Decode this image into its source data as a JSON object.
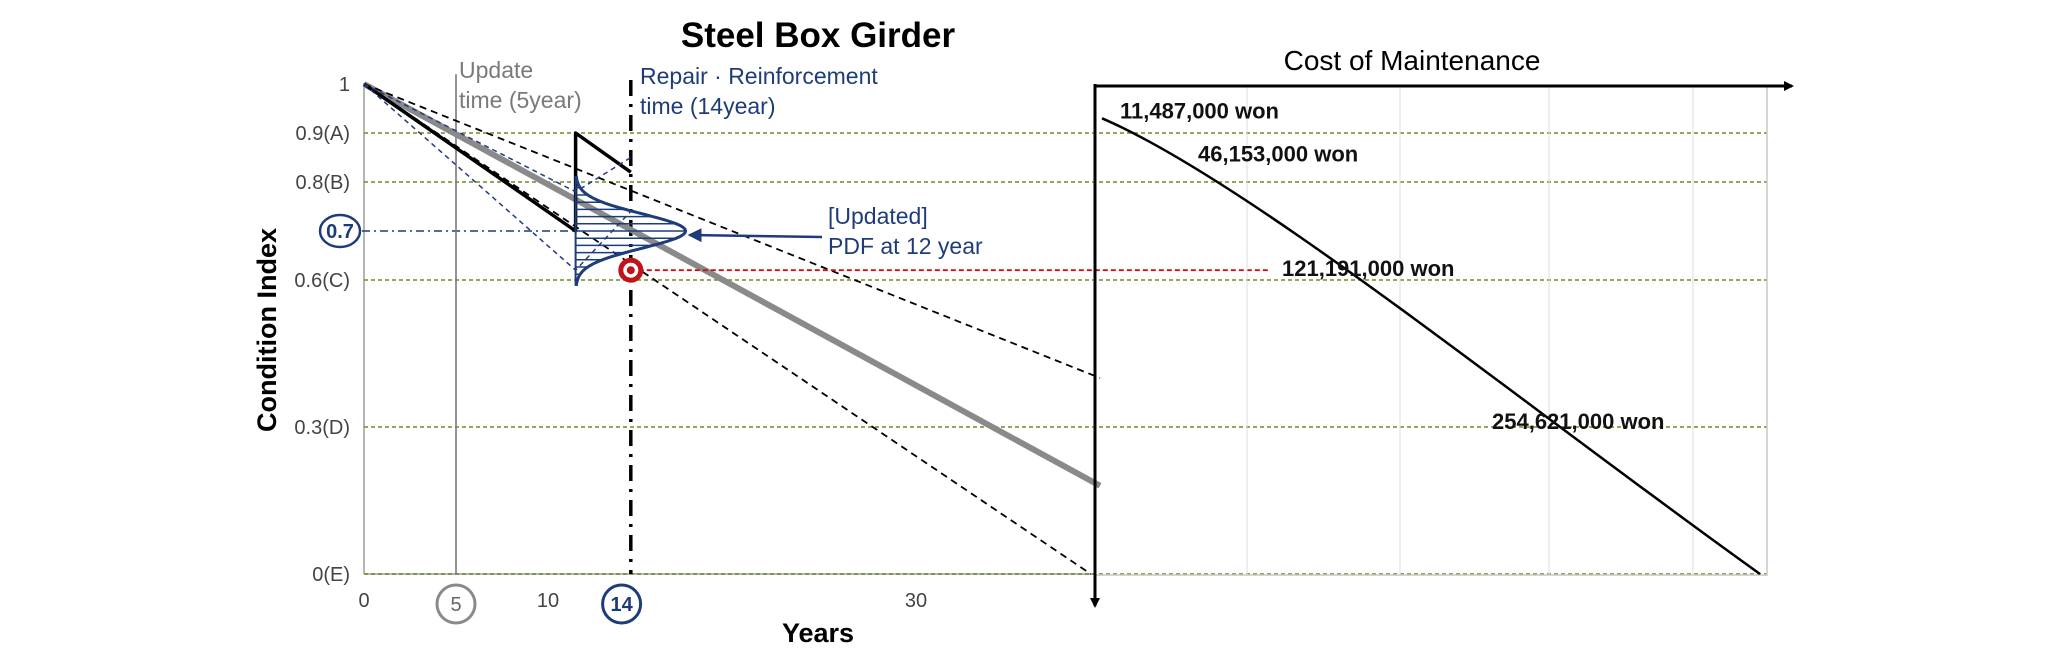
{
  "chart_data": [
    {
      "type": "line",
      "title": "Steel Box Girder",
      "xlabel": "Years",
      "ylabel": "Condition Index",
      "xlim": [
        0,
        40
      ],
      "ylim": [
        0,
        1
      ],
      "x_ticks": [
        "0",
        "5",
        "10",
        "14",
        "30"
      ],
      "x_ticks_circled": [
        "5",
        "14"
      ],
      "y_ticks": [
        {
          "value": 1,
          "label": "1"
        },
        {
          "value": 0.9,
          "label": "0.9(A)"
        },
        {
          "value": 0.8,
          "label": "0.8(B)"
        },
        {
          "value": 0.7,
          "label": "0.7"
        },
        {
          "value": 0.6,
          "label": "0.6(C)"
        },
        {
          "value": 0.3,
          "label": "0.3(D)"
        },
        {
          "value": 0,
          "label": "0(E)"
        }
      ],
      "grid": "dashed green at condition grades",
      "series": [
        {
          "style": "mean-gray",
          "x": [
            0,
            40
          ],
          "y": [
            1.0,
            0.18
          ]
        },
        {
          "style": "upper-dashed",
          "x": [
            0,
            40
          ],
          "y": [
            1.0,
            0.4
          ]
        },
        {
          "style": "lower-dashed",
          "x": [
            0,
            39.5
          ],
          "y": [
            1.0,
            0.0
          ]
        },
        {
          "style": "observed-black",
          "x": [
            0,
            11.5,
            11.5,
            14.5
          ],
          "y": [
            1.0,
            0.7,
            0.9,
            0.82
          ]
        },
        {
          "style": "inner-upper-blue-dashed",
          "x": [
            0,
            11.5,
            14.5
          ],
          "y": [
            1.0,
            0.78,
            0.85
          ]
        },
        {
          "style": "inner-lower-blue-dashed",
          "x": [
            0,
            11.5,
            14.5
          ],
          "y": [
            1.0,
            0.62,
            0.74
          ]
        }
      ],
      "vertical_markers": [
        {
          "x": 5,
          "style": "solid-gray"
        },
        {
          "x": 14,
          "style": "dash-dot-black"
        }
      ],
      "pdf_curve": {
        "x_base": 11.5,
        "mean": 0.7,
        "sd": 0.035
      },
      "marker_point": {
        "x": 14.5,
        "y": 0.62,
        "color": "#c0141a"
      },
      "annotations": {
        "update_time": [
          "Update",
          "time (5year)"
        ],
        "repair_time": [
          "Repair · Reinforcement",
          "time (14year)"
        ],
        "pdf_label": [
          "[Updated]",
          "PDF at 12 year"
        ]
      }
    },
    {
      "type": "line",
      "title": "Cost of Maintenance",
      "points": [
        {
          "y": 0.93,
          "label": "11,487,000 won"
        },
        {
          "y": 0.85,
          "label": "46,153,000 won"
        },
        {
          "y": 0.62,
          "label": "121,191,000 won"
        },
        {
          "y": 0.3,
          "label": "254,621,000 won"
        }
      ],
      "curve_end_y": 0.0
    }
  ],
  "colors": {
    "grid": "#6b8e23",
    "mean": "#8a8a8a",
    "blue": "#1f3c7a",
    "red": "#c0141a",
    "black": "#000000"
  }
}
